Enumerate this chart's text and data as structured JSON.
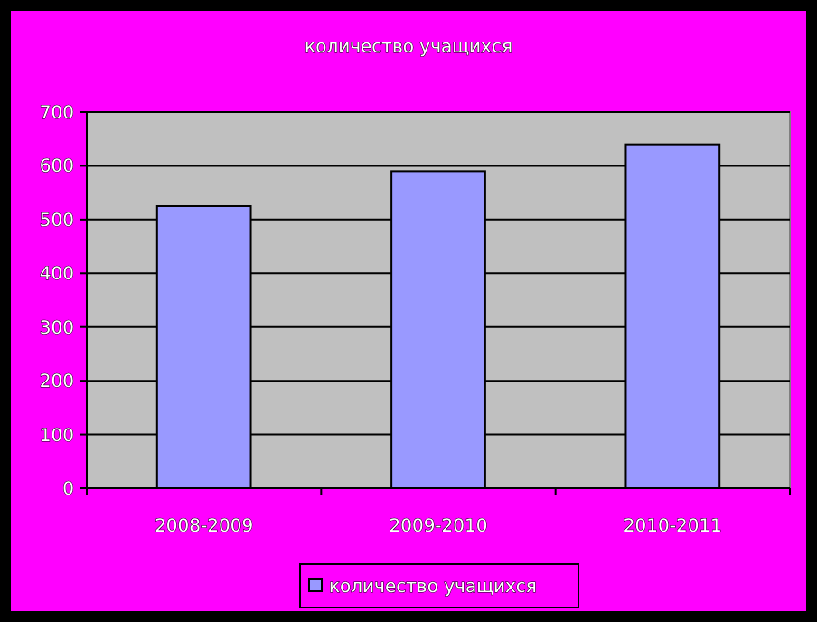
{
  "chart_data": {
    "type": "bar",
    "title": "количество учащихся",
    "categories": [
      "2008-2009",
      "2009-2010",
      "2010-2011"
    ],
    "series": [
      {
        "name": "количество учащихся",
        "color": "#9999ff",
        "values": [
          525,
          590,
          640
        ]
      }
    ],
    "ylim": [
      0,
      700
    ],
    "yticks": [
      0,
      100,
      200,
      300,
      400,
      500,
      600,
      700
    ],
    "grid": "y",
    "legend": "bottom"
  }
}
